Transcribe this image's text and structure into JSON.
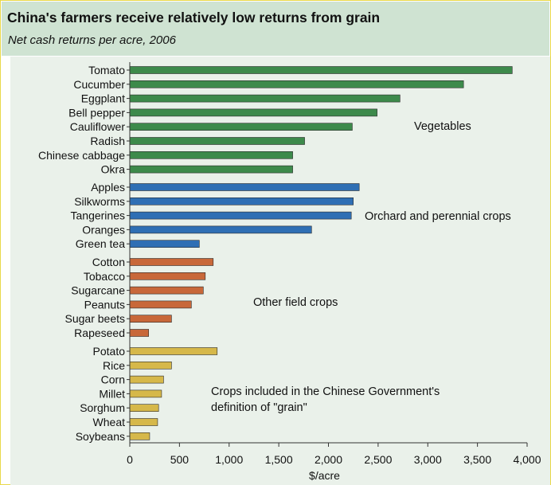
{
  "title": "China's farmers receive relatively low returns from grain",
  "subtitle": "Net cash returns per acre, 2006",
  "colors": {
    "vegetables": "#3d8a4b",
    "orchard": "#2f6fb4",
    "field": "#c8683a",
    "grain": "#d6b84a"
  },
  "chart_data": {
    "type": "bar",
    "orientation": "horizontal",
    "title": "China's farmers receive relatively low returns from grain",
    "subtitle": "Net cash returns per acre, 2006",
    "xlabel": "$/acre",
    "ylabel": "",
    "xlim": [
      0,
      4000
    ],
    "xticks": [
      0,
      500,
      1000,
      1500,
      2000,
      2500,
      3000,
      3500,
      4000
    ],
    "xtick_labels": [
      "0",
      "500",
      "1,000",
      "1,500",
      "2,000",
      "2,500",
      "3,000",
      "3,500",
      "4,000"
    ],
    "grid": false,
    "groups": [
      {
        "name": "Vegetables",
        "color": "#3d8a4b",
        "categories": [
          "Tomato",
          "Cucumber",
          "Eggplant",
          "Bell pepper",
          "Cauliflower",
          "Radish",
          "Chinese cabbage",
          "Okra"
        ],
        "values": [
          3850,
          3360,
          2720,
          2490,
          2240,
          1760,
          1640,
          1640
        ]
      },
      {
        "name": "Orchard and perennial crops",
        "color": "#2f6fb4",
        "categories": [
          "Apples",
          "Silkworms",
          "Tangerines",
          "Oranges",
          "Green tea"
        ],
        "values": [
          2310,
          2250,
          2230,
          1830,
          700
        ]
      },
      {
        "name": "Other field crops",
        "color": "#c8683a",
        "categories": [
          "Cotton",
          "Tobacco",
          "Sugarcane",
          "Peanuts",
          "Sugar beets",
          "Rapeseed"
        ],
        "values": [
          840,
          760,
          740,
          620,
          420,
          190
        ]
      },
      {
        "name": "Crops included in the Chinese Government's definition of \"grain\"",
        "color": "#d6b84a",
        "categories": [
          "Potato",
          "Rice",
          "Corn",
          "Millet",
          "Sorghum",
          "Wheat",
          "Soybeans"
        ],
        "values": [
          880,
          420,
          340,
          320,
          290,
          280,
          200
        ]
      }
    ],
    "annotations": [
      "Vegetables",
      "Orchard and perennial crops",
      "Other field crops",
      "Crops included in the Chinese Government's",
      "definition of \"grain\""
    ]
  }
}
